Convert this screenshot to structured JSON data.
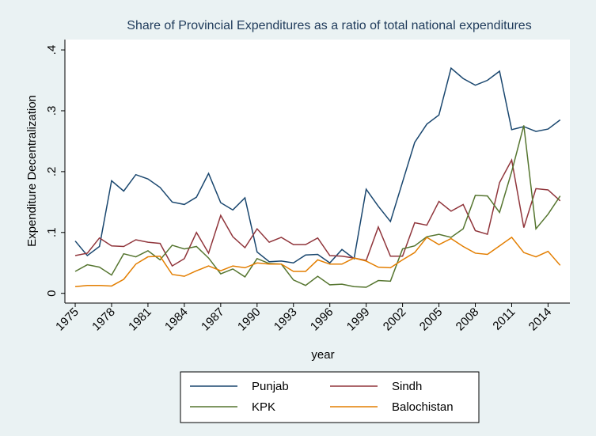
{
  "chart_data": {
    "type": "line",
    "title": "Share of Provincial Expenditures as a ratio of total national expenditures",
    "x_label": "year",
    "y_label": "Expenditure Decentralization",
    "x": [
      1975,
      1976,
      1977,
      1978,
      1979,
      1980,
      1981,
      1982,
      1983,
      1984,
      1985,
      1986,
      1987,
      1988,
      1989,
      1990,
      1991,
      1992,
      1993,
      1994,
      1995,
      1996,
      1997,
      1998,
      1999,
      2000,
      2001,
      2002,
      2003,
      2004,
      2005,
      2006,
      2007,
      2008,
      2009,
      2010,
      2011,
      2012,
      2013,
      2014,
      2015
    ],
    "series": [
      {
        "name": "Punjab",
        "color": "#1a476f",
        "values": [
          0.086,
          0.062,
          0.077,
          0.185,
          0.168,
          0.195,
          0.188,
          0.174,
          0.15,
          0.146,
          0.158,
          0.197,
          0.149,
          0.137,
          0.157,
          0.068,
          0.052,
          0.053,
          0.05,
          0.063,
          0.064,
          0.05,
          0.072,
          0.057,
          0.171,
          0.143,
          0.118,
          0.183,
          0.248,
          0.278,
          0.293,
          0.37,
          0.353,
          0.342,
          0.35,
          0.365,
          0.269,
          0.274,
          0.266,
          0.27,
          0.285
        ]
      },
      {
        "name": "Sindh",
        "color": "#90353b",
        "values": [
          0.062,
          0.066,
          0.091,
          0.078,
          0.077,
          0.088,
          0.084,
          0.082,
          0.045,
          0.057,
          0.1,
          0.066,
          0.128,
          0.093,
          0.075,
          0.106,
          0.084,
          0.092,
          0.08,
          0.08,
          0.091,
          0.062,
          0.061,
          0.058,
          0.054,
          0.109,
          0.061,
          0.061,
          0.116,
          0.112,
          0.151,
          0.135,
          0.146,
          0.103,
          0.097,
          0.182,
          0.219,
          0.108,
          0.172,
          0.17,
          0.152
        ]
      },
      {
        "name": "KPK",
        "color": "#55752f",
        "values": [
          0.036,
          0.047,
          0.043,
          0.03,
          0.065,
          0.06,
          0.07,
          0.055,
          0.079,
          0.073,
          0.077,
          0.058,
          0.032,
          0.04,
          0.027,
          0.057,
          0.049,
          0.048,
          0.022,
          0.013,
          0.028,
          0.014,
          0.015,
          0.011,
          0.01,
          0.021,
          0.02,
          0.073,
          0.078,
          0.093,
          0.097,
          0.092,
          0.106,
          0.161,
          0.16,
          0.133,
          0.2,
          0.276,
          0.106,
          0.13,
          0.16
        ]
      },
      {
        "name": "Balochistan",
        "color": "#e37e00",
        "values": [
          0.011,
          0.013,
          0.013,
          0.012,
          0.023,
          0.048,
          0.06,
          0.061,
          0.031,
          0.028,
          0.037,
          0.045,
          0.037,
          0.045,
          0.042,
          0.05,
          0.048,
          0.048,
          0.036,
          0.036,
          0.055,
          0.048,
          0.048,
          0.058,
          0.053,
          0.043,
          0.042,
          0.055,
          0.067,
          0.092,
          0.08,
          0.09,
          0.077,
          0.066,
          0.064,
          0.078,
          0.092,
          0.067,
          0.06,
          0.069,
          0.046
        ]
      }
    ],
    "xlim": [
      1974.15,
      2015.8
    ],
    "xticks": [
      1975,
      1978,
      1981,
      1984,
      1987,
      1990,
      1993,
      1996,
      1999,
      2002,
      2005,
      2008,
      2011,
      2014
    ],
    "ylim": [
      -0.016,
      0.417
    ],
    "yticks": [
      0,
      {
        "value": 0.1,
        "label": ".1"
      },
      {
        "value": 0.2,
        "label": ".2"
      },
      {
        "value": 0.3,
        "label": ".3"
      },
      {
        "value": 0.4,
        "label": ".4"
      }
    ],
    "grid": false,
    "legend": "bottom"
  }
}
